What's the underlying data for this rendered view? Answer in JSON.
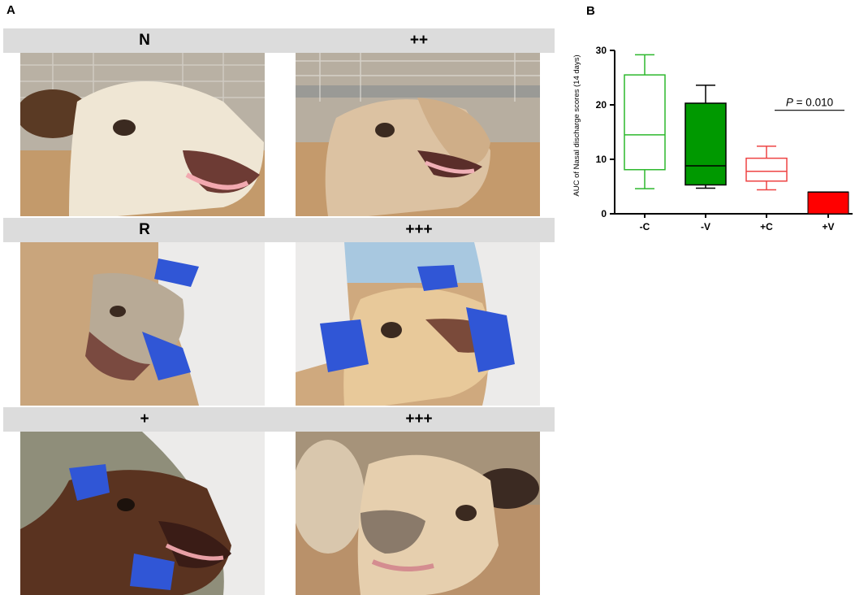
{
  "panel_a": {
    "letter": "A",
    "photos": [
      {
        "label": "N"
      },
      {
        "label": "++"
      },
      {
        "label": "R"
      },
      {
        "label": "+++"
      },
      {
        "label": "+"
      },
      {
        "label": "+++"
      }
    ]
  },
  "panel_b": {
    "letter": "B"
  },
  "chart_data": {
    "type": "box",
    "ylabel": "AUC of Nasal discharge scores (14 days)",
    "xlabel": "",
    "ylim": [
      0,
      30
    ],
    "yticks": [
      "0",
      "10",
      "20",
      "30"
    ],
    "categories": [
      "-C",
      "-V",
      "+C",
      "+V"
    ],
    "boxes": [
      {
        "category": "-C",
        "whisker_low": 4.6,
        "q1": 8.1,
        "median": 14.5,
        "q3": 25.5,
        "whisker_high": 29.2,
        "color": "#2db82d",
        "filled": false
      },
      {
        "category": "-V",
        "whisker_low": 4.7,
        "q1": 5.3,
        "median": 8.8,
        "q3": 20.3,
        "whisker_high": 23.6,
        "color": "#009900",
        "filled": true
      },
      {
        "category": "+C",
        "whisker_low": 4.4,
        "q1": 6.0,
        "median": 7.8,
        "q3": 10.2,
        "whisker_high": 12.4,
        "color": "#ee4444",
        "filled": false
      },
      {
        "category": "+V",
        "whisker_low": 4.0,
        "q1": 4.0,
        "median": 4.0,
        "q3": 4.0,
        "whisker_high": 4.0,
        "bar_from": 0,
        "color": "#ff0000",
        "filled": true
      }
    ],
    "annotation": {
      "p_label": "P",
      "p_value": "= 0.010",
      "y": 19.0,
      "from": "+C",
      "to": "+V"
    },
    "grid": false,
    "legend": "none"
  }
}
